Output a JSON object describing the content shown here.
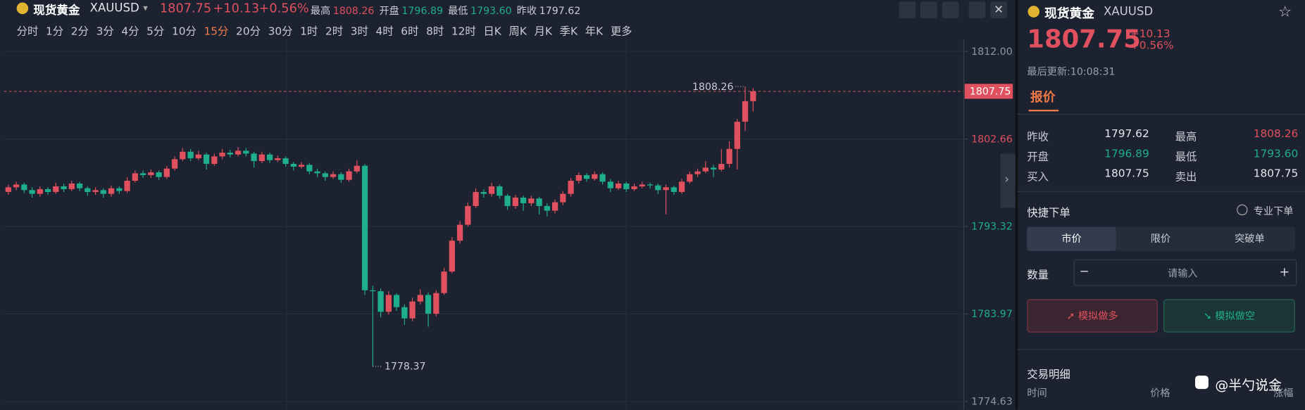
{
  "header": {
    "name": "现货黄金",
    "symbol": "XAUUSD",
    "price": "1807.75",
    "change": "+10.13",
    "change_pct": "+0.56%",
    "stats": [
      [
        "最高",
        "1808.26"
      ],
      [
        "开盘",
        "1796.89"
      ],
      [
        "最低",
        "1793.60"
      ],
      [
        "昨收",
        "1797.62"
      ]
    ]
  },
  "timeframes": {
    "items": [
      "分时",
      "1分",
      "2分",
      "3分",
      "4分",
      "5分",
      "10分",
      "15分",
      "20分",
      "30分",
      "1时",
      "2时",
      "3时",
      "4时",
      "6时",
      "8时",
      "12时",
      "日K",
      "周K",
      "月K",
      "季K",
      "年K",
      "更多"
    ],
    "active": 7
  },
  "chart_data": {
    "type": "candlestick",
    "up_color": "#e0505e",
    "down_color": "#1fae8c",
    "grid": true,
    "ylim": [
      1774.63,
      1812.0
    ],
    "yticks": [
      {
        "value": 1812.0,
        "label": "1812.00"
      },
      1802.66,
      1793.32,
      1783.97,
      1774.63
    ],
    "last_price": 1807.75,
    "ohlc": [
      [
        1797.0,
        1797.8,
        1796.7,
        1797.5
      ],
      [
        1797.5,
        1798.1,
        1797.2,
        1797.8
      ],
      [
        1797.8,
        1798.0,
        1796.9,
        1797.2
      ],
      [
        1797.2,
        1797.5,
        1796.4,
        1796.8
      ],
      [
        1796.8,
        1797.6,
        1796.5,
        1797.3
      ],
      [
        1797.3,
        1797.5,
        1796.7,
        1797.0
      ],
      [
        1797.0,
        1798.0,
        1796.8,
        1797.6
      ],
      [
        1797.6,
        1797.9,
        1797.0,
        1797.3
      ],
      [
        1797.3,
        1798.2,
        1797.1,
        1797.9
      ],
      [
        1797.9,
        1798.1,
        1797.1,
        1797.4
      ],
      [
        1797.4,
        1797.6,
        1796.6,
        1797.0
      ],
      [
        1797.0,
        1797.5,
        1796.7,
        1797.2
      ],
      [
        1797.2,
        1797.4,
        1796.4,
        1796.8
      ],
      [
        1796.8,
        1797.7,
        1796.5,
        1797.4
      ],
      [
        1797.4,
        1797.6,
        1796.8,
        1797.1
      ],
      [
        1797.1,
        1798.6,
        1796.9,
        1798.2
      ],
      [
        1798.2,
        1799.3,
        1798.0,
        1799.0
      ],
      [
        1799.0,
        1799.3,
        1798.5,
        1798.8
      ],
      [
        1798.8,
        1799.4,
        1798.5,
        1799.1
      ],
      [
        1799.1,
        1799.3,
        1798.3,
        1798.6
      ],
      [
        1798.6,
        1799.8,
        1798.4,
        1799.5
      ],
      [
        1799.5,
        1800.8,
        1799.3,
        1800.5
      ],
      [
        1800.5,
        1801.7,
        1800.3,
        1801.3
      ],
      [
        1801.3,
        1801.6,
        1800.3,
        1800.6
      ],
      [
        1800.6,
        1801.4,
        1800.4,
        1801.0
      ],
      [
        1801.0,
        1801.2,
        1799.4,
        1800.0
      ],
      [
        1800.0,
        1801.1,
        1799.8,
        1800.8
      ],
      [
        1800.8,
        1801.6,
        1800.5,
        1801.2
      ],
      [
        1801.2,
        1801.5,
        1800.7,
        1801.0
      ],
      [
        1801.0,
        1801.8,
        1800.8,
        1801.4
      ],
      [
        1801.4,
        1801.7,
        1800.8,
        1801.1
      ],
      [
        1801.1,
        1801.3,
        1799.6,
        1800.3
      ],
      [
        1800.3,
        1801.3,
        1800.1,
        1801.0
      ],
      [
        1801.0,
        1801.2,
        1800.1,
        1800.4
      ],
      [
        1800.4,
        1800.9,
        1800.2,
        1800.6
      ],
      [
        1800.6,
        1800.8,
        1799.7,
        1800.0
      ],
      [
        1800.0,
        1800.2,
        1799.3,
        1799.7
      ],
      [
        1799.7,
        1800.2,
        1799.5,
        1799.9
      ],
      [
        1799.9,
        1800.1,
        1798.9,
        1799.2
      ],
      [
        1799.2,
        1799.5,
        1798.6,
        1799.0
      ],
      [
        1799.0,
        1799.2,
        1798.2,
        1798.6
      ],
      [
        1798.6,
        1799.2,
        1798.4,
        1798.9
      ],
      [
        1798.9,
        1799.1,
        1798.0,
        1798.3
      ],
      [
        1798.3,
        1799.5,
        1798.1,
        1799.2
      ],
      [
        1799.2,
        1800.4,
        1799.0,
        1799.8
      ],
      [
        1799.8,
        1800.0,
        1786.0,
        1786.5
      ],
      [
        1786.5,
        1787.0,
        1778.37,
        1786.4
      ],
      [
        1786.4,
        1786.7,
        1783.6,
        1784.2
      ],
      [
        1784.2,
        1786.4,
        1783.9,
        1786.0
      ],
      [
        1786.0,
        1786.2,
        1784.3,
        1784.7
      ],
      [
        1784.7,
        1785.0,
        1782.8,
        1783.5
      ],
      [
        1783.5,
        1785.7,
        1783.2,
        1785.3
      ],
      [
        1785.3,
        1786.6,
        1785.0,
        1786.0
      ],
      [
        1786.0,
        1786.3,
        1782.6,
        1784.0
      ],
      [
        1784.0,
        1786.5,
        1783.7,
        1786.2
      ],
      [
        1786.2,
        1788.9,
        1786.0,
        1788.5
      ],
      [
        1788.5,
        1792.2,
        1788.3,
        1791.8
      ],
      [
        1791.8,
        1793.9,
        1791.5,
        1793.5
      ],
      [
        1793.5,
        1795.9,
        1793.3,
        1795.5
      ],
      [
        1795.5,
        1797.4,
        1795.3,
        1797.0
      ],
      [
        1797.0,
        1797.3,
        1796.4,
        1796.8
      ],
      [
        1796.8,
        1798.0,
        1796.5,
        1797.6
      ],
      [
        1797.6,
        1797.8,
        1796.3,
        1796.6
      ],
      [
        1796.6,
        1796.8,
        1795.1,
        1795.5
      ],
      [
        1795.5,
        1796.7,
        1795.2,
        1796.4
      ],
      [
        1796.4,
        1796.6,
        1795.0,
        1795.8
      ],
      [
        1795.8,
        1796.6,
        1795.5,
        1796.3
      ],
      [
        1796.3,
        1796.5,
        1794.6,
        1795.5
      ],
      [
        1795.5,
        1795.8,
        1794.4,
        1795.0
      ],
      [
        1795.0,
        1796.2,
        1794.7,
        1795.9
      ],
      [
        1795.9,
        1797.1,
        1795.6,
        1796.8
      ],
      [
        1796.8,
        1798.5,
        1796.5,
        1798.2
      ],
      [
        1798.2,
        1799.1,
        1797.9,
        1798.8
      ],
      [
        1798.8,
        1799.0,
        1798.1,
        1798.4
      ],
      [
        1798.4,
        1799.2,
        1798.2,
        1798.9
      ],
      [
        1798.9,
        1799.1,
        1797.8,
        1798.1
      ],
      [
        1798.1,
        1798.4,
        1797.0,
        1797.4
      ],
      [
        1797.4,
        1798.2,
        1797.2,
        1797.9
      ],
      [
        1797.9,
        1798.1,
        1797.0,
        1797.3
      ],
      [
        1797.3,
        1797.9,
        1797.1,
        1797.6
      ],
      [
        1797.6,
        1798.1,
        1797.4,
        1797.8
      ],
      [
        1797.8,
        1798.0,
        1797.4,
        1797.7
      ],
      [
        1797.7,
        1797.9,
        1796.8,
        1797.2
      ],
      [
        1797.2,
        1797.8,
        1794.6,
        1797.5
      ],
      [
        1797.5,
        1797.7,
        1796.7,
        1797.0
      ],
      [
        1797.0,
        1798.4,
        1796.8,
        1798.1
      ],
      [
        1798.1,
        1799.2,
        1797.9,
        1798.9
      ],
      [
        1798.9,
        1799.5,
        1798.6,
        1799.2
      ],
      [
        1799.2,
        1800.3,
        1799.0,
        1799.6
      ],
      [
        1799.6,
        1799.9,
        1798.6,
        1799.4
      ],
      [
        1799.4,
        1801.6,
        1799.2,
        1800.0
      ],
      [
        1800.0,
        1802.4,
        1799.6,
        1801.6
      ],
      [
        1801.6,
        1804.8,
        1799.4,
        1804.5
      ],
      [
        1804.5,
        1808.26,
        1803.5,
        1806.7
      ],
      [
        1806.7,
        1808.1,
        1805.6,
        1807.75
      ]
    ]
  },
  "panel": {
    "name": "现货黄金",
    "symbol": "XAUUSD",
    "price": "1807.75",
    "change": "+10.13",
    "change_pct": "+0.56%",
    "updated": "最后更新:10:08:31",
    "tab": "报价",
    "rows": [
      [
        "昨收",
        "1797.62",
        "最高",
        "1808.26"
      ],
      [
        "开盘",
        "1796.89",
        "最低",
        "1793.60"
      ],
      [
        "买入",
        "1807.75",
        "卖出",
        "1807.75"
      ]
    ],
    "quick_order": "快捷下单",
    "pro_order": "专业下单",
    "order_tabs": [
      "市价",
      "限价",
      "突破单"
    ],
    "qty_label": "数量",
    "minus": "−",
    "qty_placeholder": "请输入",
    "plus": "+",
    "buy": "模拟做多",
    "sell": "模拟做空",
    "trades_title": "交易明细",
    "trade_cols": [
      "时间",
      "价格",
      "涨幅"
    ],
    "watermark": "@半勺说金"
  }
}
